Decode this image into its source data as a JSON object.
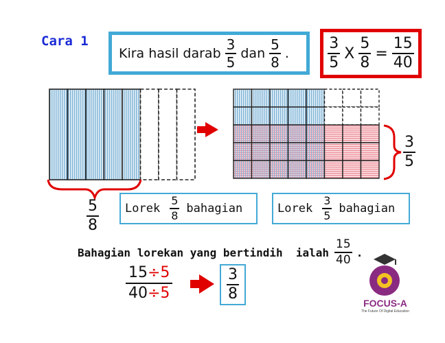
{
  "heading": "Cara 1",
  "instruction": {
    "text": "Kira hasil darab",
    "frac1": {
      "num": "3",
      "den": "5"
    },
    "conj": "dan",
    "frac2": {
      "num": "5",
      "den": "8"
    },
    "end": "."
  },
  "equation": {
    "frac1": {
      "num": "3",
      "den": "5"
    },
    "times": "X",
    "frac2": {
      "num": "5",
      "den": "8"
    },
    "equals": "=",
    "result": {
      "num": "15",
      "den": "40"
    }
  },
  "left_model": {
    "columns": 8,
    "shaded_columns": 5,
    "shade_color": "#9fc6df"
  },
  "right_model": {
    "columns": 8,
    "rows": 5,
    "blue_columns": 5,
    "red_rows": 3,
    "red_color": "#f2a0a8",
    "blue_color": "#9fc6df"
  },
  "left_label": {
    "num": "5",
    "den": "8"
  },
  "right_label": {
    "num": "3",
    "den": "5"
  },
  "lorek_left": {
    "prefix": "Lorek",
    "frac": {
      "num": "5",
      "den": "8"
    },
    "suffix": "bahagian"
  },
  "lorek_right": {
    "prefix": "Lorek",
    "frac": {
      "num": "3",
      "den": "5"
    },
    "suffix": "bahagian"
  },
  "sentence": {
    "text": "Bahagian lorekan yang bertindih  ialah",
    "frac": {
      "num": "15",
      "den": "40"
    },
    "end": "."
  },
  "simplify": {
    "num": "15",
    "num_op": "÷5",
    "den": "40",
    "den_op": "÷5"
  },
  "simplified": {
    "num": "3",
    "den": "8"
  },
  "colors": {
    "accent_blue": "#42a9d6",
    "heading_blue": "#1a2bd6",
    "arrow_red": "#e00000",
    "logo_purple": "#8a2b82"
  },
  "logo": {
    "name": "FOCUS-A",
    "tagline": "The Future Of Digital Education"
  }
}
